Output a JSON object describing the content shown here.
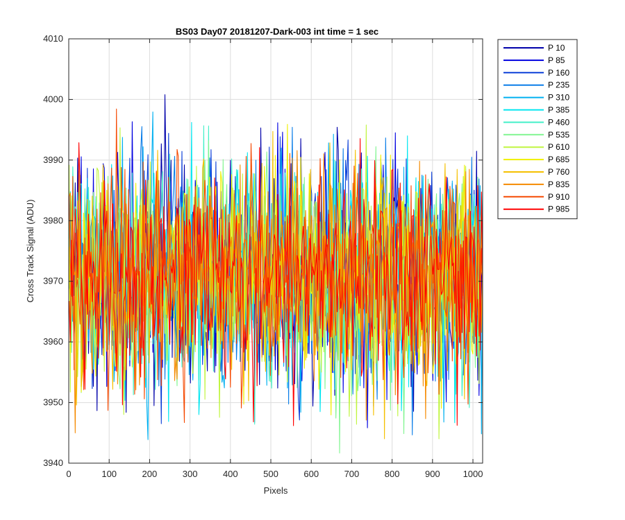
{
  "chart_data": {
    "type": "line",
    "title": "BS03 Day07 20181207-Dark-003 int time = 1 sec",
    "xlabel": "Pixels",
    "ylabel": "Cross Track Signal (ADU)",
    "xlim": [
      0,
      1024
    ],
    "ylim": [
      3940,
      4010
    ],
    "xticks": [
      0,
      100,
      200,
      300,
      400,
      500,
      600,
      700,
      800,
      900,
      1000
    ],
    "yticks": [
      3940,
      3950,
      3960,
      3970,
      3980,
      3990,
      4000,
      4010
    ],
    "grid": true,
    "legend_position": "outside-top-right",
    "series_note_values": {
      "mean": 3971,
      "spread": 9
    },
    "series": [
      {
        "name": "P 10",
        "color": "#0000aa"
      },
      {
        "name": "P 85",
        "color": "#0000e0"
      },
      {
        "name": "P 160",
        "color": "#0a3ed8"
      },
      {
        "name": "P 235",
        "color": "#0a7de8"
      },
      {
        "name": "P 310",
        "color": "#00b0f0"
      },
      {
        "name": "P 385",
        "color": "#00e6f0"
      },
      {
        "name": "P 460",
        "color": "#40f0c8"
      },
      {
        "name": "P 535",
        "color": "#80f590"
      },
      {
        "name": "P 610",
        "color": "#c0f540"
      },
      {
        "name": "P 685",
        "color": "#f0f000"
      },
      {
        "name": "P 760",
        "color": "#f5c000"
      },
      {
        "name": "P 835",
        "color": "#f58a00"
      },
      {
        "name": "P 910",
        "color": "#f54800"
      },
      {
        "name": "P 985",
        "color": "#ff0000"
      }
    ]
  }
}
